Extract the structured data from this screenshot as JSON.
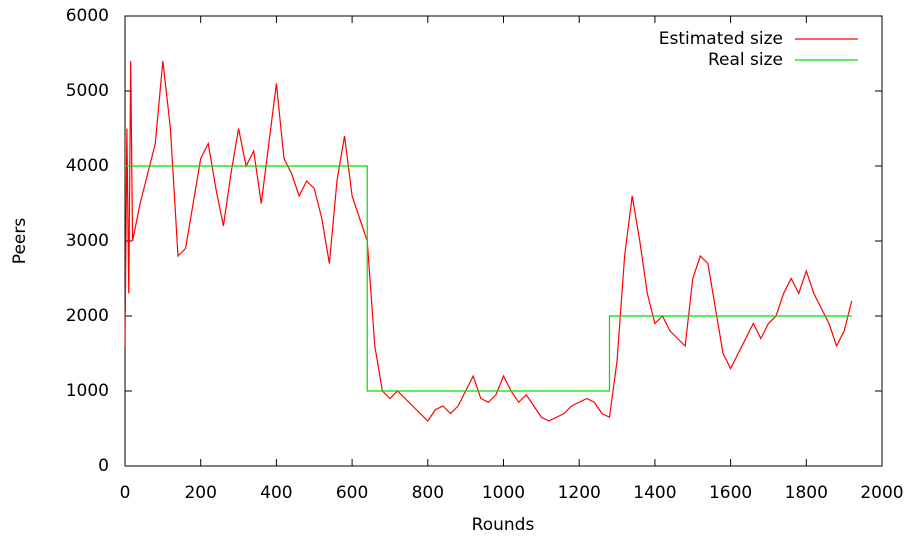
{
  "chart_data": {
    "type": "line",
    "x_label": "Rounds",
    "y_label": "Peers",
    "xlim": [
      0,
      2000
    ],
    "xticks": [
      0,
      200,
      400,
      600,
      800,
      1000,
      1200,
      1400,
      1600,
      1800,
      2000
    ],
    "ylim": [
      0,
      6000
    ],
    "yticks": [
      0,
      1000,
      2000,
      3000,
      4000,
      5000,
      6000
    ],
    "legend": "top-right",
    "series": [
      {
        "name": "Estimated size",
        "color": "#ff0000",
        "x": [
          0,
          5,
          10,
          15,
          20,
          40,
          60,
          80,
          100,
          120,
          140,
          160,
          180,
          200,
          220,
          240,
          260,
          280,
          300,
          320,
          340,
          360,
          380,
          400,
          420,
          440,
          460,
          480,
          500,
          520,
          540,
          560,
          580,
          600,
          620,
          640,
          660,
          680,
          700,
          720,
          740,
          760,
          780,
          800,
          820,
          840,
          860,
          880,
          900,
          920,
          940,
          960,
          980,
          1000,
          1020,
          1040,
          1060,
          1080,
          1100,
          1120,
          1140,
          1160,
          1180,
          1200,
          1220,
          1240,
          1260,
          1280,
          1300,
          1320,
          1340,
          1360,
          1380,
          1400,
          1420,
          1440,
          1460,
          1480,
          1500,
          1520,
          1540,
          1560,
          1580,
          1600,
          1620,
          1640,
          1660,
          1680,
          1700,
          1720,
          1740,
          1760,
          1780,
          1800,
          1820,
          1840,
          1860,
          1880,
          1900,
          1920
        ],
        "values": [
          1600,
          4500,
          2300,
          5400,
          3000,
          3500,
          3900,
          4300,
          5400,
          4500,
          2800,
          2900,
          3500,
          4100,
          4300,
          3700,
          3200,
          3900,
          4500,
          4000,
          4200,
          3500,
          4300,
          5100,
          4100,
          3900,
          3600,
          3800,
          3700,
          3300,
          2700,
          3800,
          4400,
          3600,
          3300,
          3000,
          1600,
          1000,
          900,
          1000,
          900,
          800,
          700,
          600,
          750,
          800,
          700,
          800,
          1000,
          1200,
          900,
          850,
          950,
          1200,
          1000,
          850,
          950,
          800,
          650,
          600,
          650,
          700,
          800,
          850,
          900,
          850,
          700,
          650,
          1400,
          2800,
          3600,
          3000,
          2300,
          1900,
          2000,
          1800,
          1700,
          1600,
          2500,
          2800,
          2700,
          2100,
          1500,
          1300,
          1500,
          1700,
          1900,
          1700,
          1900,
          2000,
          2300,
          2500,
          2300,
          2600,
          2300,
          2100,
          1900,
          1600,
          1800,
          2200
        ]
      },
      {
        "name": "Real size",
        "color": "#00dd00",
        "x": [
          0,
          640,
          640,
          1280,
          1280,
          1920
        ],
        "values": [
          4000,
          4000,
          1000,
          1000,
          2000,
          2000
        ]
      }
    ]
  }
}
